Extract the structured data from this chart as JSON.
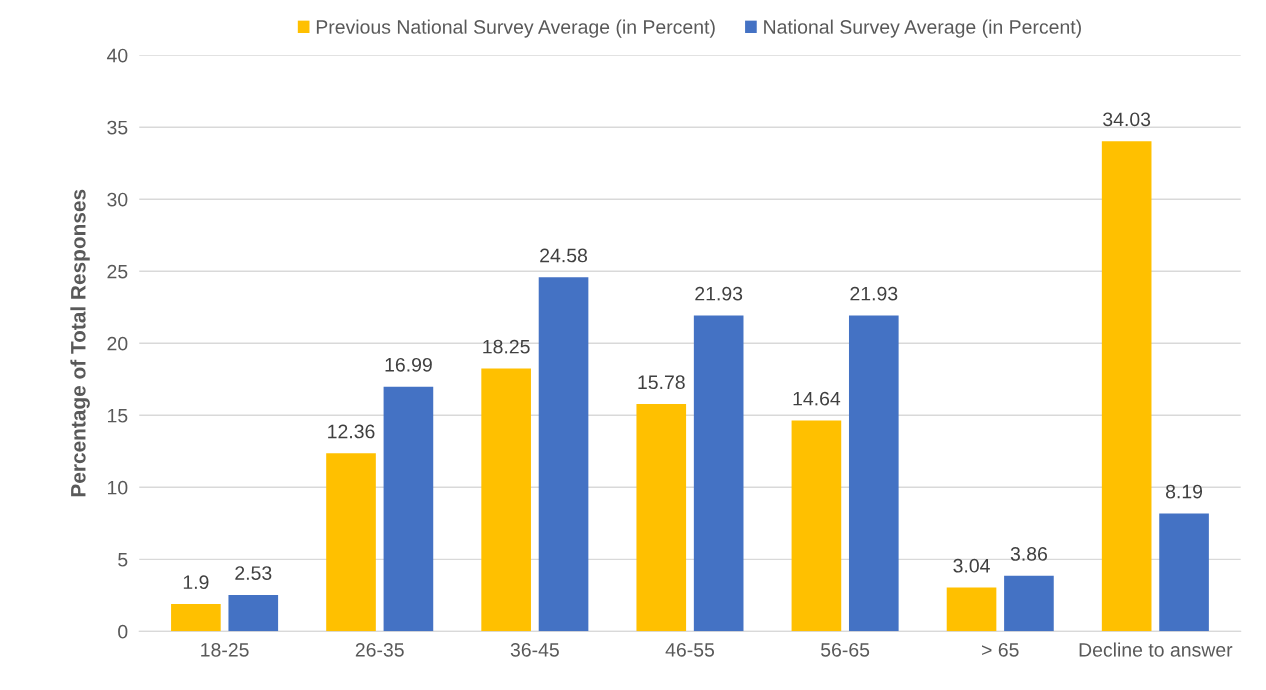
{
  "chart_data": {
    "type": "bar",
    "ylabel": "Percentage of Total Responses",
    "categories": [
      "18-25",
      "26-35",
      "36-45",
      "46-55",
      "56-65",
      "> 65",
      "Decline to answer"
    ],
    "series": [
      {
        "name": "Previous National Survey Average (in Percent)",
        "color": "#ffc000",
        "values": [
          1.9,
          12.36,
          18.25,
          15.78,
          14.64,
          3.04,
          34.03
        ]
      },
      {
        "name": "National Survey Average (in Percent)",
        "color": "#4472c4",
        "values": [
          2.53,
          16.99,
          24.58,
          21.93,
          21.93,
          3.86,
          8.19
        ]
      }
    ],
    "ylim": [
      0,
      40
    ],
    "yticks": [
      0,
      5,
      10,
      15,
      20,
      25,
      30,
      35,
      40
    ],
    "grid": "y",
    "legend": "top",
    "data_labels": true
  }
}
